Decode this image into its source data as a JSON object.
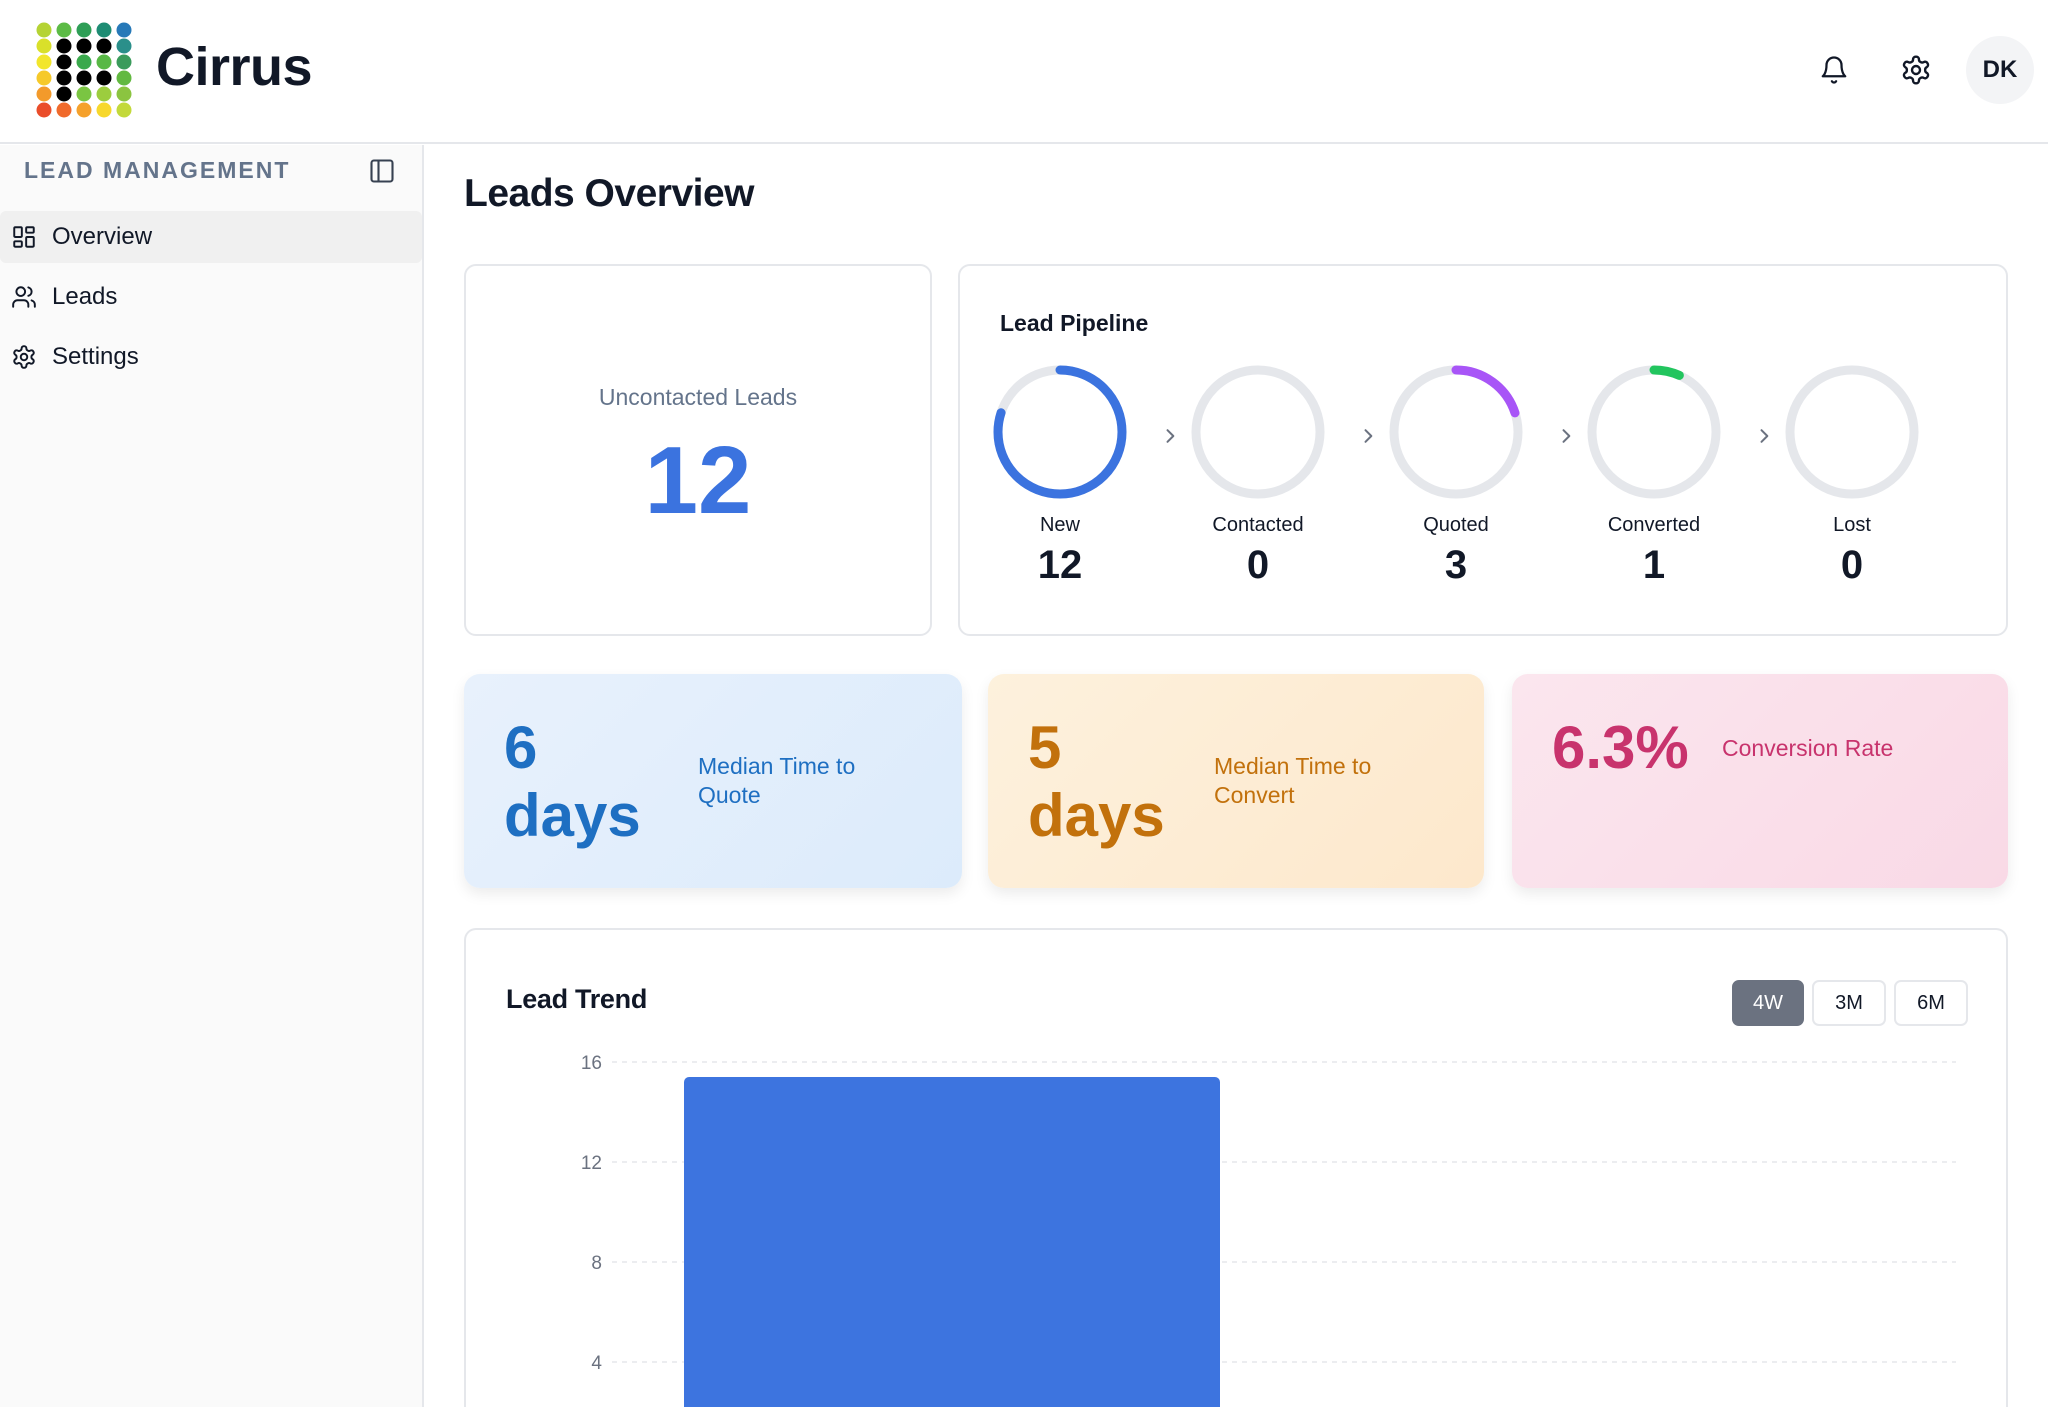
{
  "app": {
    "name": "Cirrus"
  },
  "header": {
    "avatar_initials": "DK"
  },
  "sidebar": {
    "section_title": "LEAD MANAGEMENT",
    "items": [
      {
        "label": "Overview",
        "icon": "grid-icon",
        "active": true
      },
      {
        "label": "Leads",
        "icon": "users-icon",
        "active": false
      },
      {
        "label": "Settings",
        "icon": "gear-icon",
        "active": false
      }
    ]
  },
  "page": {
    "title": "Leads Overview"
  },
  "uncontacted": {
    "label": "Uncontacted Leads",
    "value": "12"
  },
  "pipeline": {
    "title": "Lead Pipeline",
    "stages": [
      {
        "label": "New",
        "value": "12",
        "color": "#3b73df",
        "fraction": 0.8
      },
      {
        "label": "Contacted",
        "value": "0",
        "color": "#3b73df",
        "fraction": 0
      },
      {
        "label": "Quoted",
        "value": "3",
        "color": "#a855f7",
        "fraction": 0.2
      },
      {
        "label": "Converted",
        "value": "1",
        "color": "#22c55e",
        "fraction": 0.067
      },
      {
        "label": "Lost",
        "value": "0",
        "color": "#ef4444",
        "fraction": 0
      }
    ]
  },
  "metrics": [
    {
      "value_line1": "6",
      "value_line2": "days",
      "label": "Median Time to Quote",
      "color": "#1e6fc2"
    },
    {
      "value_line1": "5",
      "value_line2": "days",
      "label": "Median Time to Convert",
      "color": "#c2710c"
    },
    {
      "value_line1": "6.3%",
      "value_line2": "",
      "label": "Conversion Rate",
      "color": "#c8336d"
    }
  ],
  "trend": {
    "title": "Lead Trend",
    "ranges": [
      {
        "label": "4W",
        "active": true
      },
      {
        "label": "3M",
        "active": false
      },
      {
        "label": "6M",
        "active": false
      }
    ]
  },
  "chart_data": {
    "type": "bar",
    "title": "Lead Trend",
    "yticks": [
      16,
      12,
      8,
      4
    ],
    "ylim": [
      0,
      16
    ],
    "values": [
      15.4
    ],
    "bar_color": "#3d74df",
    "grid": true
  }
}
